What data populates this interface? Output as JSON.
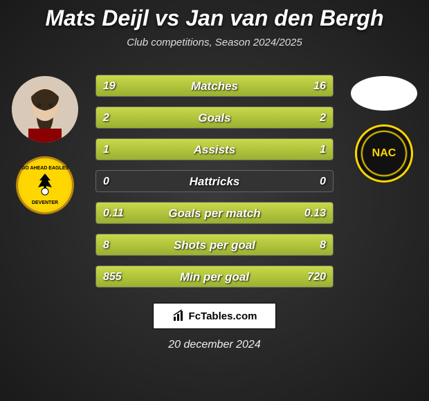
{
  "title": "Mats Deijl vs Jan van den Bergh",
  "subtitle": "Club competitions, Season 2024/2025",
  "footer_brand": "FcTables.com",
  "footer_date": "20 december 2024",
  "colors": {
    "bar_fill_top": "#c9d94a",
    "bar_fill_bottom": "#9ab030",
    "bar_bg": "#333333",
    "page_bg_center": "#3a3a3a",
    "page_bg_edge": "#1a1a1a"
  },
  "stats": [
    {
      "label": "Matches",
      "left_text": "19",
      "right_text": "16",
      "left_pct": 54.3,
      "right_pct": 45.7
    },
    {
      "label": "Goals",
      "left_text": "2",
      "right_text": "2",
      "left_pct": 50.0,
      "right_pct": 50.0
    },
    {
      "label": "Assists",
      "left_text": "1",
      "right_text": "1",
      "left_pct": 50.0,
      "right_pct": 50.0
    },
    {
      "label": "Hattricks",
      "left_text": "0",
      "right_text": "0",
      "left_pct": 0.0,
      "right_pct": 0.0
    },
    {
      "label": "Goals per match",
      "left_text": "0.11",
      "right_text": "0.13",
      "left_pct": 45.8,
      "right_pct": 54.2
    },
    {
      "label": "Shots per goal",
      "left_text": "8",
      "right_text": "8",
      "left_pct": 50.0,
      "right_pct": 50.0
    },
    {
      "label": "Min per goal",
      "left_text": "855",
      "right_text": "720",
      "left_pct": 54.3,
      "right_pct": 45.7
    }
  ],
  "player_left": {
    "name": "Mats Deijl",
    "club_short": "GO AHEAD EAGLES",
    "club_city": "DEVENTER"
  },
  "player_right": {
    "name": "Jan van den Bergh",
    "club_short": "NAC"
  }
}
